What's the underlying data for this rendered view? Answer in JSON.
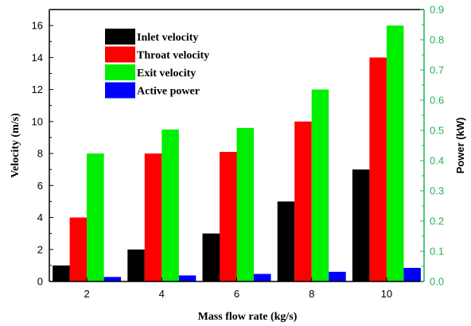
{
  "chart_data": {
    "type": "bar",
    "xlabel": "Mass flow rate (kg/s)",
    "ylabel": "Velocity (m/s)",
    "y2label": "Power (kW)",
    "categories": [
      "2",
      "4",
      "6",
      "8",
      "10"
    ],
    "ylim": [
      0,
      17
    ],
    "y2lim": [
      0,
      0.9
    ],
    "yticks": [
      "0",
      "2",
      "4",
      "6",
      "8",
      "10",
      "12",
      "14",
      "16"
    ],
    "y2ticks": [
      "0.0",
      "0.1",
      "0.2",
      "0.3",
      "0.4",
      "0.5",
      "0.6",
      "0.7",
      "0.8",
      "0.9"
    ],
    "grid": false,
    "legend_position": "top-left",
    "series": [
      {
        "name": "Inlet velocity",
        "axis": "left",
        "color": "#000000",
        "values": [
          1,
          2,
          3,
          5,
          7
        ]
      },
      {
        "name": "Throat velocity",
        "axis": "left",
        "color": "#ff0000",
        "values": [
          4,
          8,
          8.1,
          10,
          14
        ]
      },
      {
        "name": "Exit velocity",
        "axis": "left",
        "color": "#00ee00",
        "values": [
          8,
          9.5,
          9.6,
          12,
          16
        ]
      },
      {
        "name": "Active power",
        "axis": "right",
        "color": "#0000ff",
        "values": [
          0.015,
          0.02,
          0.025,
          0.032,
          0.045
        ]
      }
    ],
    "colors": {
      "right_axis": "#1db45a",
      "left_axis": "#000000"
    }
  }
}
